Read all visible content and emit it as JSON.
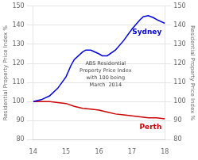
{
  "chart_data": {
    "type": "line",
    "ylabel": "Residential Property Price Index %",
    "y2label": "Residential Property Price Index %",
    "annotation": "ABS Residential\nProperty Price Index\nwith 100 being\nMarch  2014",
    "xlim": [
      14,
      18
    ],
    "xticks": [
      14,
      15,
      16,
      17,
      18
    ],
    "ylim": [
      80,
      150
    ],
    "yticks": [
      80,
      90,
      100,
      110,
      120,
      130,
      140,
      150
    ],
    "y2lim": [
      80,
      150
    ],
    "y2ticks": [
      80,
      90,
      100,
      110,
      120,
      130,
      140,
      150
    ],
    "grid": true,
    "series": [
      {
        "name": "Sydney",
        "color": "#0000dd",
        "x": [
          14.0,
          14.25,
          14.5,
          14.75,
          15.0,
          15.15,
          15.25,
          15.5,
          15.6,
          15.75,
          16.0,
          16.1,
          16.25,
          16.5,
          16.75,
          17.0,
          17.15,
          17.25,
          17.35,
          17.5,
          17.65,
          17.75,
          18.0
        ],
        "values": [
          100,
          101,
          103,
          107,
          113,
          119,
          122,
          126,
          127,
          127,
          125,
          124,
          124,
          127,
          132,
          138,
          141,
          143,
          144.5,
          145,
          144,
          143,
          141
        ]
      },
      {
        "name": "Perth",
        "color": "#cc0000",
        "x": [
          14.0,
          14.25,
          14.5,
          14.75,
          15.0,
          15.25,
          15.5,
          15.75,
          16.0,
          16.25,
          16.5,
          16.75,
          17.0,
          17.25,
          17.5,
          17.75,
          18.0
        ],
        "values": [
          100,
          100,
          100,
          99.5,
          99,
          97.5,
          96.5,
          96,
          95.5,
          94.5,
          93.5,
          93,
          92.5,
          92,
          91.5,
          91.5,
          91
        ]
      }
    ]
  }
}
